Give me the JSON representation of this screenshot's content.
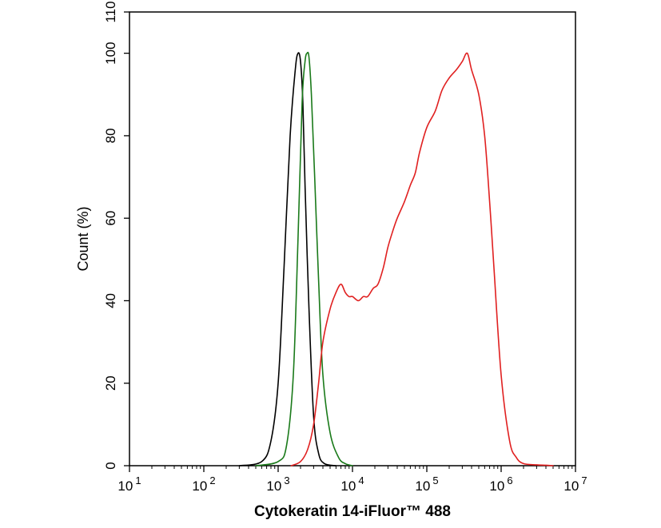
{
  "chart_data": {
    "type": "line",
    "title": "",
    "xlabel": "Cytokeratin 14-iFluor™ 488",
    "ylabel": "Count  (%)",
    "x_scale": "log",
    "xlim": [
      10,
      10000000
    ],
    "ylim": [
      0,
      110
    ],
    "x_ticks": [
      {
        "base": "10",
        "exp": "1",
        "value": 10
      },
      {
        "base": "10",
        "exp": "2",
        "value": 100
      },
      {
        "base": "10",
        "exp": "3",
        "value": 1000
      },
      {
        "base": "10",
        "exp": "4",
        "value": 10000
      },
      {
        "base": "10",
        "exp": "5",
        "value": 100000
      },
      {
        "base": "10",
        "exp": "6",
        "value": 1000000
      },
      {
        "base": "10",
        "exp": "7",
        "value": 10000000
      }
    ],
    "y_ticks": [
      0,
      20,
      40,
      60,
      80,
      100,
      110
    ],
    "grid": false,
    "legend": "none",
    "series": [
      {
        "color": "#000000",
        "x": [
          300,
          600,
          800,
          1000,
          1200,
          1450,
          1700,
          1850,
          2000,
          2150,
          2300,
          2600,
          3000,
          3500,
          4200,
          6000
        ],
        "y": [
          0,
          1,
          6,
          20,
          48,
          80,
          96,
          100,
          98,
          88,
          68,
          38,
          12,
          3,
          0.5,
          0
        ]
      },
      {
        "color": "#1a7a1a",
        "x": [
          500,
          1000,
          1300,
          1600,
          1850,
          2100,
          2300,
          2450,
          2600,
          2800,
          3100,
          3500,
          4000,
          5000,
          6500,
          8000,
          10000
        ],
        "y": [
          0,
          1,
          5,
          22,
          55,
          88,
          98,
          100,
          99,
          90,
          70,
          45,
          22,
          8,
          2,
          0.5,
          0
        ]
      },
      {
        "color": "#e02020",
        "x": [
          1500,
          2000,
          2500,
          3000,
          3500,
          4000,
          5000,
          6000,
          7000,
          8000,
          9000,
          10000,
          12000,
          14000,
          16000,
          19000,
          22000,
          26000,
          30000,
          35000,
          40000,
          50000,
          60000,
          70000,
          80000,
          100000,
          130000,
          160000,
          200000,
          250000,
          300000,
          350000,
          400000,
          500000,
          600000,
          700000,
          800000,
          1000000,
          1300000,
          1600000,
          2000000,
          3000000,
          4000000,
          5000000
        ],
        "y": [
          0,
          1,
          4,
          10,
          20,
          30,
          38,
          42,
          44,
          42,
          41,
          41,
          40,
          41,
          41,
          43,
          44,
          48,
          53,
          57,
          60,
          64,
          68,
          71,
          76,
          82,
          86,
          91,
          94,
          96,
          98,
          100,
          96,
          90,
          80,
          64,
          48,
          22,
          6,
          2,
          0.5,
          0.2,
          0.1,
          0
        ]
      }
    ]
  }
}
